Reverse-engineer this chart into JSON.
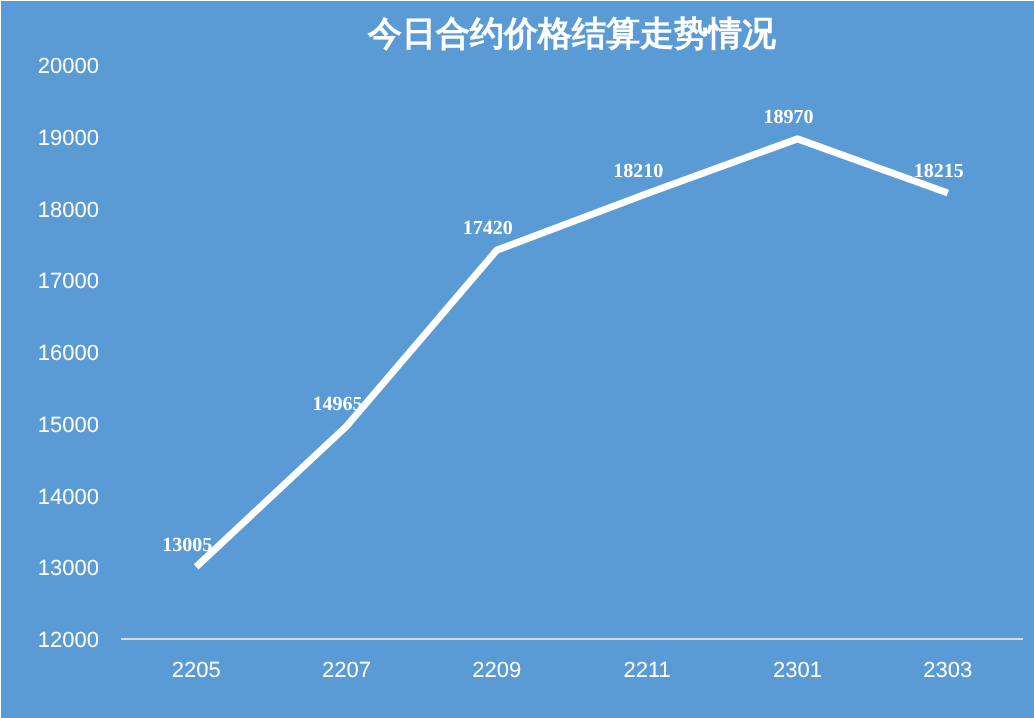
{
  "chart_data": {
    "type": "line",
    "title": "今日合约价格结算走势情况",
    "categories": [
      "2205",
      "2207",
      "2209",
      "2211",
      "2301",
      "2303"
    ],
    "series": [
      {
        "color": "#ffffff",
        "values": [
          13005,
          14965,
          17420,
          18210,
          18970,
          18215
        ]
      }
    ],
    "ylim": [
      12000,
      20000
    ],
    "yticks": [
      12000,
      13000,
      14000,
      15000,
      16000,
      17000,
      18000,
      19000,
      20000
    ],
    "grid": false,
    "data_labels": true,
    "marker": "none",
    "line_style": "solid"
  }
}
